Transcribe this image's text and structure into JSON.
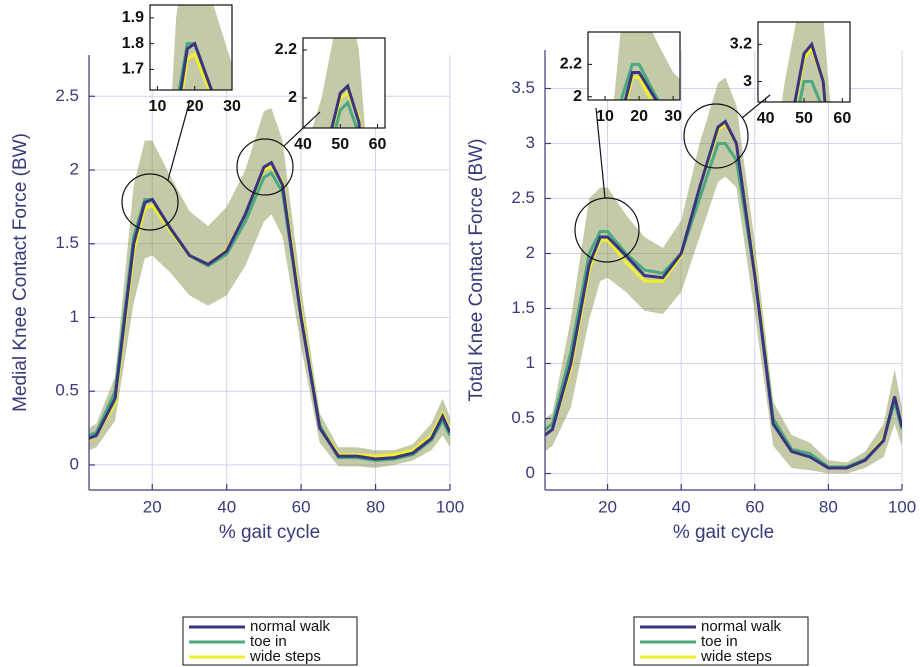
{
  "chart_data": [
    {
      "type": "line",
      "xlabel": "% gait cycle",
      "ylabel": "Medial Knee Contact Force (BW)",
      "x": [
        3,
        5,
        10,
        15,
        18,
        20,
        25,
        30,
        35,
        40,
        45,
        50,
        52,
        55,
        60,
        65,
        70,
        75,
        80,
        85,
        90,
        95,
        98,
        100
      ],
      "series": [
        {
          "name": "normal walk",
          "color": "#3b3480",
          "values": [
            0.18,
            0.2,
            0.45,
            1.5,
            1.78,
            1.8,
            1.6,
            1.42,
            1.36,
            1.45,
            1.7,
            2.02,
            2.05,
            1.9,
            1.0,
            0.25,
            0.06,
            0.06,
            0.04,
            0.05,
            0.08,
            0.18,
            0.33,
            0.22
          ]
        },
        {
          "name": "toe in",
          "color": "#4aa97f",
          "values": [
            0.2,
            0.22,
            0.5,
            1.55,
            1.8,
            1.8,
            1.6,
            1.42,
            1.35,
            1.43,
            1.65,
            1.95,
            1.98,
            1.85,
            1.0,
            0.27,
            0.05,
            0.05,
            0.03,
            0.04,
            0.07,
            0.17,
            0.3,
            0.2
          ]
        },
        {
          "name": "wide steps",
          "color": "#f0f02a",
          "values": [
            0.17,
            0.2,
            0.42,
            1.45,
            1.74,
            1.76,
            1.58,
            1.42,
            1.36,
            1.46,
            1.7,
            2.0,
            2.02,
            1.92,
            1.05,
            0.27,
            0.07,
            0.07,
            0.06,
            0.07,
            0.1,
            0.2,
            0.35,
            0.24
          ]
        }
      ],
      "band": {
        "color": "#7d8a3c",
        "upper": [
          0.25,
          0.28,
          0.6,
          1.9,
          2.2,
          2.2,
          1.95,
          1.72,
          1.62,
          1.75,
          2.0,
          2.4,
          2.42,
          2.2,
          1.2,
          0.35,
          0.12,
          0.12,
          0.1,
          0.1,
          0.14,
          0.28,
          0.45,
          0.32
        ],
        "lower": [
          0.1,
          0.12,
          0.3,
          1.1,
          1.4,
          1.42,
          1.3,
          1.15,
          1.08,
          1.15,
          1.35,
          1.65,
          1.7,
          1.55,
          0.8,
          0.15,
          -0.01,
          -0.01,
          -0.02,
          0,
          0.03,
          0.1,
          0.2,
          0.12
        ]
      },
      "xlim": [
        3,
        100
      ],
      "ylim": [
        -0.17,
        2.78
      ],
      "xticks": [
        20,
        40,
        60,
        80,
        100
      ],
      "yticks": [
        0,
        0.5,
        1,
        1.5,
        2,
        2.5
      ],
      "grid": true,
      "legend": "below",
      "insets": [
        {
          "xlim": [
            8,
            30
          ],
          "ylim": [
            1.62,
            1.95
          ],
          "xticks": [
            10,
            20,
            30
          ],
          "yticks": [
            1.7,
            1.8,
            1.9
          ]
        },
        {
          "xlim": [
            40,
            62
          ],
          "ylim": [
            1.875,
            2.25
          ],
          "xticks": [
            40,
            50,
            60
          ],
          "yticks": [
            2,
            2.2
          ]
        }
      ]
    },
    {
      "type": "line",
      "xlabel": "% gait cycle",
      "ylabel": "Total Knee Contact Force (BW)",
      "x": [
        3,
        5,
        10,
        15,
        18,
        20,
        25,
        30,
        35,
        40,
        45,
        50,
        52,
        55,
        60,
        65,
        70,
        75,
        80,
        85,
        90,
        95,
        98,
        100
      ],
      "series": [
        {
          "name": "normal walk",
          "color": "#3b3480",
          "values": [
            0.35,
            0.4,
            1.0,
            1.9,
            2.15,
            2.15,
            1.98,
            1.8,
            1.78,
            2.0,
            2.6,
            3.15,
            3.2,
            3.0,
            1.8,
            0.45,
            0.2,
            0.15,
            0.05,
            0.05,
            0.12,
            0.3,
            0.7,
            0.42
          ]
        },
        {
          "name": "toe in",
          "color": "#4aa97f",
          "values": [
            0.4,
            0.45,
            1.1,
            2.0,
            2.2,
            2.2,
            2.0,
            1.85,
            1.82,
            2.0,
            2.5,
            3.0,
            3.0,
            2.85,
            1.8,
            0.5,
            0.22,
            0.18,
            0.06,
            0.06,
            0.13,
            0.3,
            0.65,
            0.4
          ]
        },
        {
          "name": "wide steps",
          "color": "#f0f02a",
          "values": [
            0.35,
            0.4,
            0.95,
            1.85,
            2.12,
            2.12,
            1.92,
            1.75,
            1.75,
            1.98,
            2.6,
            3.12,
            3.18,
            3.0,
            1.85,
            0.5,
            0.22,
            0.15,
            0.06,
            0.06,
            0.13,
            0.32,
            0.7,
            0.42
          ]
        }
      ],
      "band": {
        "color": "#7d8a3c",
        "upper": [
          0.5,
          0.55,
          1.4,
          2.5,
          2.6,
          2.6,
          2.35,
          2.15,
          2.05,
          2.3,
          3.0,
          3.55,
          3.6,
          3.35,
          2.1,
          0.65,
          0.35,
          0.28,
          0.12,
          0.1,
          0.2,
          0.45,
          0.95,
          0.6
        ],
        "lower": [
          0.2,
          0.25,
          0.6,
          1.4,
          1.75,
          1.78,
          1.65,
          1.48,
          1.45,
          1.65,
          2.15,
          2.65,
          2.7,
          2.6,
          1.45,
          0.25,
          0.05,
          0.03,
          0,
          0,
          0.05,
          0.15,
          0.45,
          0.25
        ]
      },
      "xlim": [
        3,
        100
      ],
      "ylim": [
        -0.15,
        3.85
      ],
      "xticks": [
        20,
        40,
        60,
        80,
        100
      ],
      "yticks": [
        0,
        0.5,
        1,
        1.5,
        2,
        2.5,
        3,
        3.5
      ],
      "grid": true,
      "legend": "below",
      "insets": [
        {
          "xlim": [
            5,
            32
          ],
          "ylim": [
            1.98,
            2.4
          ],
          "xticks": [
            10,
            20,
            30
          ],
          "yticks": [
            2,
            2.2
          ]
        },
        {
          "xlim": [
            38,
            62
          ],
          "ylim": [
            2.89,
            3.32
          ],
          "xticks": [
            40,
            50,
            60
          ],
          "yticks": [
            3,
            3.2
          ]
        }
      ]
    }
  ]
}
